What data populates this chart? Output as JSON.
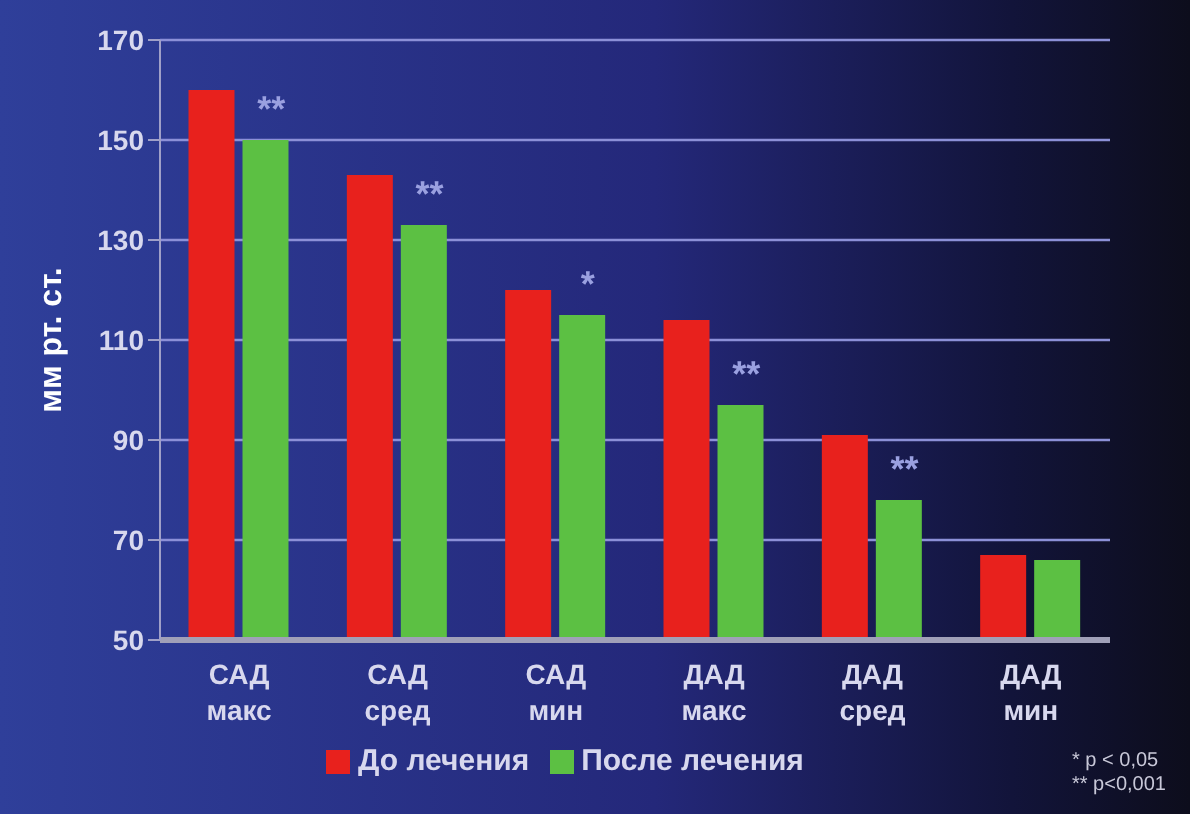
{
  "chart_data": {
    "type": "bar",
    "categories": [
      "САД\nмакс",
      "САД\nсред",
      "САД\nмин",
      "ДАД\nмакс",
      "ДАД\nсред",
      "ДАД\nмин"
    ],
    "series": [
      {
        "name": "До лечения",
        "color": "#e8211d",
        "values": [
          160,
          143,
          120,
          114,
          91,
          67
        ]
      },
      {
        "name": "После лечения",
        "color": "#5cc043",
        "values": [
          150,
          133,
          115,
          97,
          78,
          66
        ]
      }
    ],
    "ylabel": "мм рт. ст.",
    "ylim": [
      50,
      170
    ],
    "yticks": [
      50,
      70,
      90,
      110,
      130,
      150,
      170
    ],
    "grid": "y",
    "legend": "bottom",
    "annotations": [
      {
        "text": "**",
        "x": "САД\nмакс",
        "y": 150
      },
      {
        "text": "**",
        "x": "САД\nсред",
        "y": 133
      },
      {
        "text": "*",
        "x": "САД\nмин",
        "y": 115
      },
      {
        "text": "**",
        "x": "ДАД\nмакс",
        "y": 97
      },
      {
        "text": "**",
        "x": "ДАД\nсред",
        "y": 78
      },
      "* p < 0,05",
      "** p<0,001"
    ]
  }
}
